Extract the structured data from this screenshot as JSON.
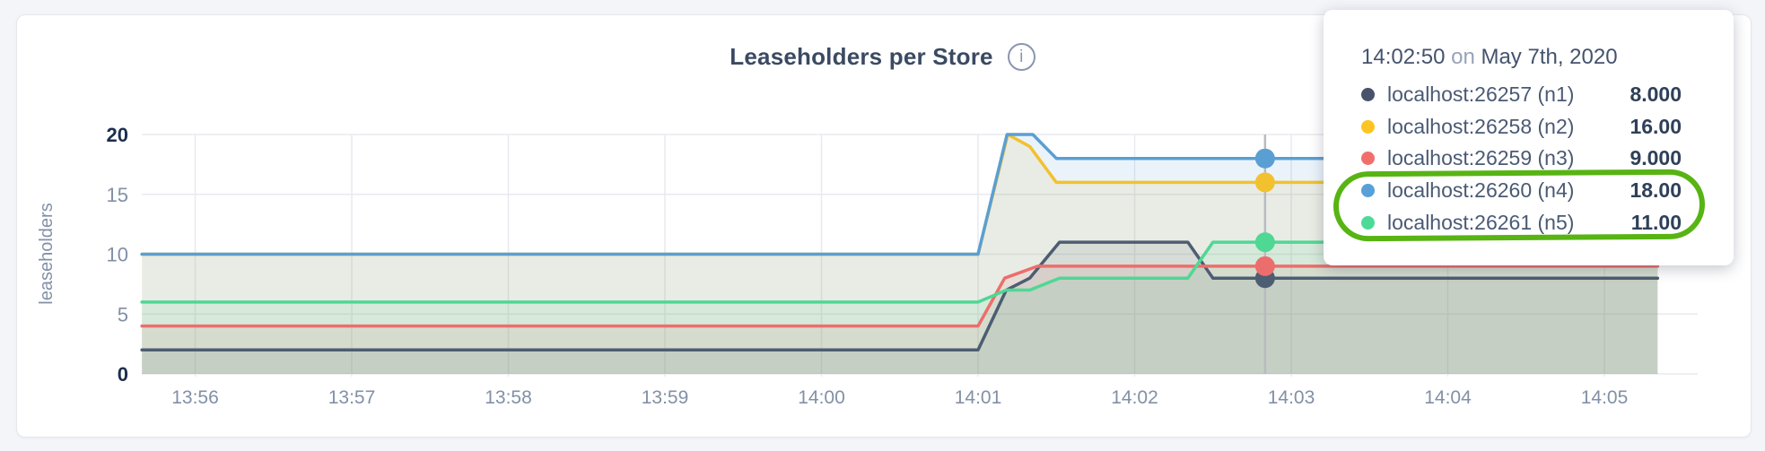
{
  "page": {
    "background": "#f3f5f9"
  },
  "header": {
    "title": "Leaseholders per Store",
    "info_glyph": "i"
  },
  "tooltip": {
    "time": "14:02:50",
    "on_word": "on",
    "date": "May 7th, 2020",
    "rows": [
      {
        "name": "localhost:26257 (n1)",
        "value": "8.000",
        "color": "#47536b",
        "highlighted": false
      },
      {
        "name": "localhost:26258 (n2)",
        "value": "16.00",
        "color": "#fdc423",
        "highlighted": false
      },
      {
        "name": "localhost:26259 (n3)",
        "value": "9.000",
        "color": "#f06f6d",
        "highlighted": false
      },
      {
        "name": "localhost:26260 (n4)",
        "value": "18.00",
        "color": "#58a0d7",
        "highlighted": true
      },
      {
        "name": "localhost:26261 (n5)",
        "value": "11.00",
        "color": "#4cdb97",
        "highlighted": true
      }
    ]
  },
  "annotation": {
    "shape": "hand-drawn-oval",
    "color": "#57b413",
    "around": [
      "localhost:26260 (n4)",
      "localhost:26261 (n5)"
    ]
  },
  "chart_data": {
    "type": "area",
    "title": "Leaseholders per Store",
    "xlabel": "",
    "ylabel": "leaseholders",
    "ylim": [
      0,
      20
    ],
    "y_ticks": [
      0,
      5,
      10,
      15,
      20
    ],
    "x_tick_labels": [
      "13:56",
      "13:57",
      "13:58",
      "13:59",
      "14:00",
      "14:01",
      "14:02",
      "14:03",
      "14:04",
      "14:05"
    ],
    "x_range_minutes": [
      -0.34,
      9.34
    ],
    "grid": true,
    "legend_position": "tooltip",
    "colors": {
      "grid": "#e7eaef",
      "hover_line": "#b7bbc1",
      "axis_minor": "#8290a6",
      "axis_bold": "#1b2f4d",
      "fill_opacity": 0.12
    },
    "series": [
      {
        "name": "localhost:26257 (n1)",
        "color": "#4d5d72",
        "points_min_val": [
          [
            -0.34,
            2
          ],
          [
            5.0,
            2
          ],
          [
            5.18,
            7
          ],
          [
            5.33,
            8
          ],
          [
            5.52,
            11
          ],
          [
            6.34,
            11
          ],
          [
            6.5,
            8
          ],
          [
            9.34,
            8
          ]
        ]
      },
      {
        "name": "localhost:26258 (n2)",
        "color": "#f2c130",
        "points_min_val": [
          [
            -0.34,
            10
          ],
          [
            5.0,
            10
          ],
          [
            5.19,
            20
          ],
          [
            5.33,
            19
          ],
          [
            5.5,
            16
          ],
          [
            9.34,
            16
          ]
        ]
      },
      {
        "name": "localhost:26259 (n3)",
        "color": "#ec6e6c",
        "points_min_val": [
          [
            -0.34,
            4
          ],
          [
            5.0,
            4
          ],
          [
            5.17,
            8
          ],
          [
            5.38,
            9
          ],
          [
            9.34,
            9
          ]
        ]
      },
      {
        "name": "localhost:26260 (n4)",
        "color": "#5a9fd3",
        "points_min_val": [
          [
            -0.34,
            10
          ],
          [
            5.0,
            10
          ],
          [
            5.185,
            20
          ],
          [
            5.35,
            20
          ],
          [
            5.5,
            18
          ],
          [
            9.34,
            18
          ]
        ]
      },
      {
        "name": "localhost:26261 (n5)",
        "color": "#4fd794",
        "points_min_val": [
          [
            -0.34,
            6
          ],
          [
            5.0,
            6
          ],
          [
            5.18,
            7
          ],
          [
            5.33,
            7
          ],
          [
            5.52,
            8
          ],
          [
            6.34,
            8
          ],
          [
            6.5,
            11
          ],
          [
            9.34,
            11
          ]
        ]
      }
    ],
    "hover": {
      "time_label": "14:02:50",
      "x_minutes": 6.833,
      "values": [
        8,
        16,
        9,
        18,
        11
      ]
    }
  }
}
